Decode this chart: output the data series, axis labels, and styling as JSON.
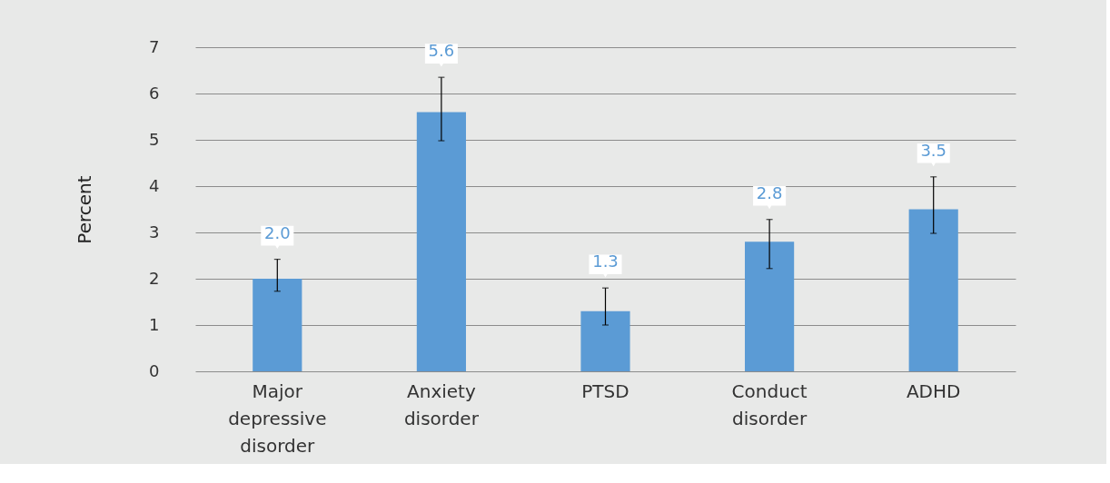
{
  "chart_data": {
    "type": "bar",
    "ylabel": "Percent",
    "categories": [
      "Major depressive disorder",
      "Anxiety disorder",
      "PTSD",
      "Conduct disorder",
      "ADHD"
    ],
    "values": [
      2.0,
      5.6,
      1.3,
      2.8,
      3.5
    ],
    "errors": [
      [
        1.73,
        2.42
      ],
      [
        4.98,
        6.35
      ],
      [
        1.0,
        1.8
      ],
      [
        2.22,
        3.28
      ],
      [
        2.98,
        4.2
      ]
    ],
    "color": "#5b9bd5",
    "ylim": [
      0,
      7
    ],
    "yticks": [
      0,
      1,
      2,
      3,
      4,
      5,
      6,
      7
    ],
    "grid": "y",
    "value_labels": [
      "2.0",
      "5.6",
      "1.3",
      "2.8",
      "3.5"
    ]
  }
}
